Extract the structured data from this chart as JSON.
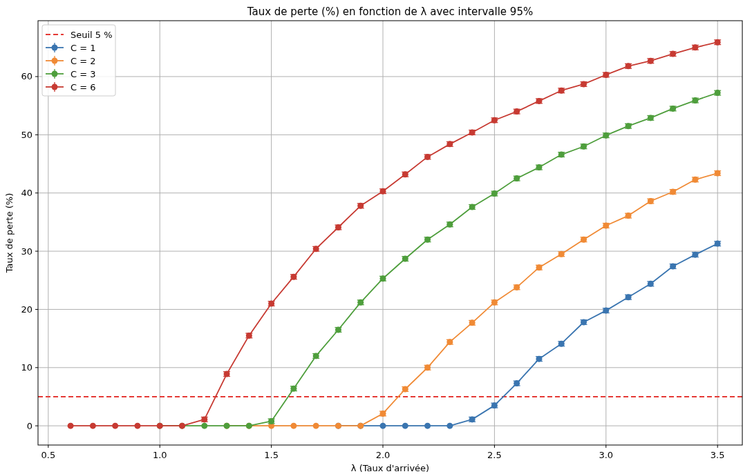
{
  "chart_data": {
    "type": "line",
    "title": "Taux de perte (%) en fonction de λ avec intervalle 95%",
    "xlabel": "λ (Taux d'arrivée)",
    "ylabel": "Taux de perte (%)",
    "x": [
      0.6,
      0.7,
      0.8,
      0.9,
      1.0,
      1.1,
      1.2,
      1.3,
      1.4,
      1.5,
      1.6,
      1.7,
      1.8,
      1.9,
      2.0,
      2.1,
      2.2,
      2.3,
      2.4,
      2.5,
      2.6,
      2.7,
      2.8,
      2.9,
      3.0,
      3.1,
      3.2,
      3.3,
      3.4,
      3.5
    ],
    "series": [
      {
        "name": "C = 1",
        "color": "#3a75b0",
        "values": [
          null,
          null,
          null,
          null,
          null,
          null,
          null,
          null,
          null,
          null,
          null,
          null,
          0,
          0,
          0,
          0,
          0,
          0,
          1.1,
          3.5,
          7.3,
          11.5,
          14.1,
          17.8,
          19.8,
          22.1,
          24.4,
          27.4,
          29.4,
          31.3
        ],
        "errors": [
          null,
          null,
          null,
          null,
          null,
          null,
          null,
          null,
          null,
          null,
          null,
          null,
          null,
          null,
          null,
          null,
          null,
          null,
          0.4,
          0.4,
          0.4,
          0.4,
          0.4,
          0.4,
          0.4,
          0.4,
          0.4,
          0.4,
          0.4,
          0.4
        ]
      },
      {
        "name": "C = 2",
        "color": "#f08a35",
        "values": [
          null,
          null,
          null,
          null,
          null,
          null,
          null,
          0,
          0,
          0,
          0,
          0,
          0,
          0,
          2.1,
          6.3,
          10.0,
          14.4,
          17.7,
          21.2,
          23.8,
          27.2,
          29.5,
          32.0,
          34.4,
          36.1,
          38.6,
          40.2,
          42.3,
          43.4
        ],
        "errors": [
          null,
          null,
          null,
          null,
          null,
          null,
          null,
          null,
          null,
          null,
          null,
          null,
          null,
          null,
          0.4,
          0.4,
          0.4,
          0.4,
          0.4,
          0.4,
          0.4,
          0.4,
          0.4,
          0.4,
          0.4,
          0.4,
          0.4,
          0.4,
          0.4,
          0.4
        ]
      },
      {
        "name": "C = 3",
        "color": "#4e9e3c",
        "values": [
          null,
          null,
          null,
          null,
          0,
          0,
          0,
          0,
          0,
          0.8,
          6.4,
          12.0,
          16.5,
          21.2,
          25.3,
          28.7,
          32.0,
          34.6,
          37.6,
          39.9,
          42.5,
          44.4,
          46.6,
          48.0,
          49.9,
          51.5,
          52.9,
          54.5,
          55.9,
          57.2
        ],
        "errors": [
          null,
          null,
          null,
          null,
          null,
          null,
          null,
          null,
          null,
          0.4,
          0.4,
          0.4,
          0.4,
          0.4,
          0.4,
          0.4,
          0.4,
          0.4,
          0.4,
          0.4,
          0.4,
          0.4,
          0.4,
          0.4,
          0.4,
          0.4,
          0.4,
          0.4,
          0.4,
          0.4
        ]
      },
      {
        "name": "C = 6",
        "color": "#c73a32",
        "values": [
          0,
          0,
          0,
          0,
          0,
          0,
          1.1,
          8.9,
          15.5,
          21.0,
          25.6,
          30.4,
          34.1,
          37.8,
          40.3,
          43.2,
          46.2,
          48.4,
          50.4,
          52.5,
          54.0,
          55.8,
          57.6,
          58.7,
          60.3,
          61.8,
          62.7,
          63.9,
          65.0,
          65.9
        ],
        "errors": [
          null,
          null,
          null,
          null,
          null,
          null,
          0.4,
          0.4,
          0.4,
          0.4,
          0.4,
          0.4,
          0.4,
          0.4,
          0.4,
          0.4,
          0.4,
          0.4,
          0.4,
          0.4,
          0.4,
          0.4,
          0.4,
          0.4,
          0.4,
          0.4,
          0.4,
          0.4,
          0.4,
          0.4
        ]
      }
    ],
    "ref_lines": [
      {
        "axis": "y",
        "value": 5,
        "label": "Seuil 5 %",
        "color": "#e53935",
        "line_style": "dashed"
      }
    ],
    "xlim": [
      0.454,
      3.611
    ],
    "xticks": [
      {
        "value": 0.5,
        "label": "0.5"
      },
      {
        "value": 1,
        "label": "1.0"
      },
      {
        "value": 1.5,
        "label": "1.5"
      },
      {
        "value": 2,
        "label": "2.0"
      },
      {
        "value": 2.5,
        "label": "2.5"
      },
      {
        "value": 3,
        "label": "3.0"
      },
      {
        "value": 3.5,
        "label": "3.5"
      }
    ],
    "ylim": [
      -3.3,
      69.6
    ],
    "yticks": [
      0,
      10,
      20,
      30,
      40,
      50,
      60
    ],
    "grid": true,
    "legend": "top left",
    "marker": "circle",
    "line_style": "solid"
  }
}
